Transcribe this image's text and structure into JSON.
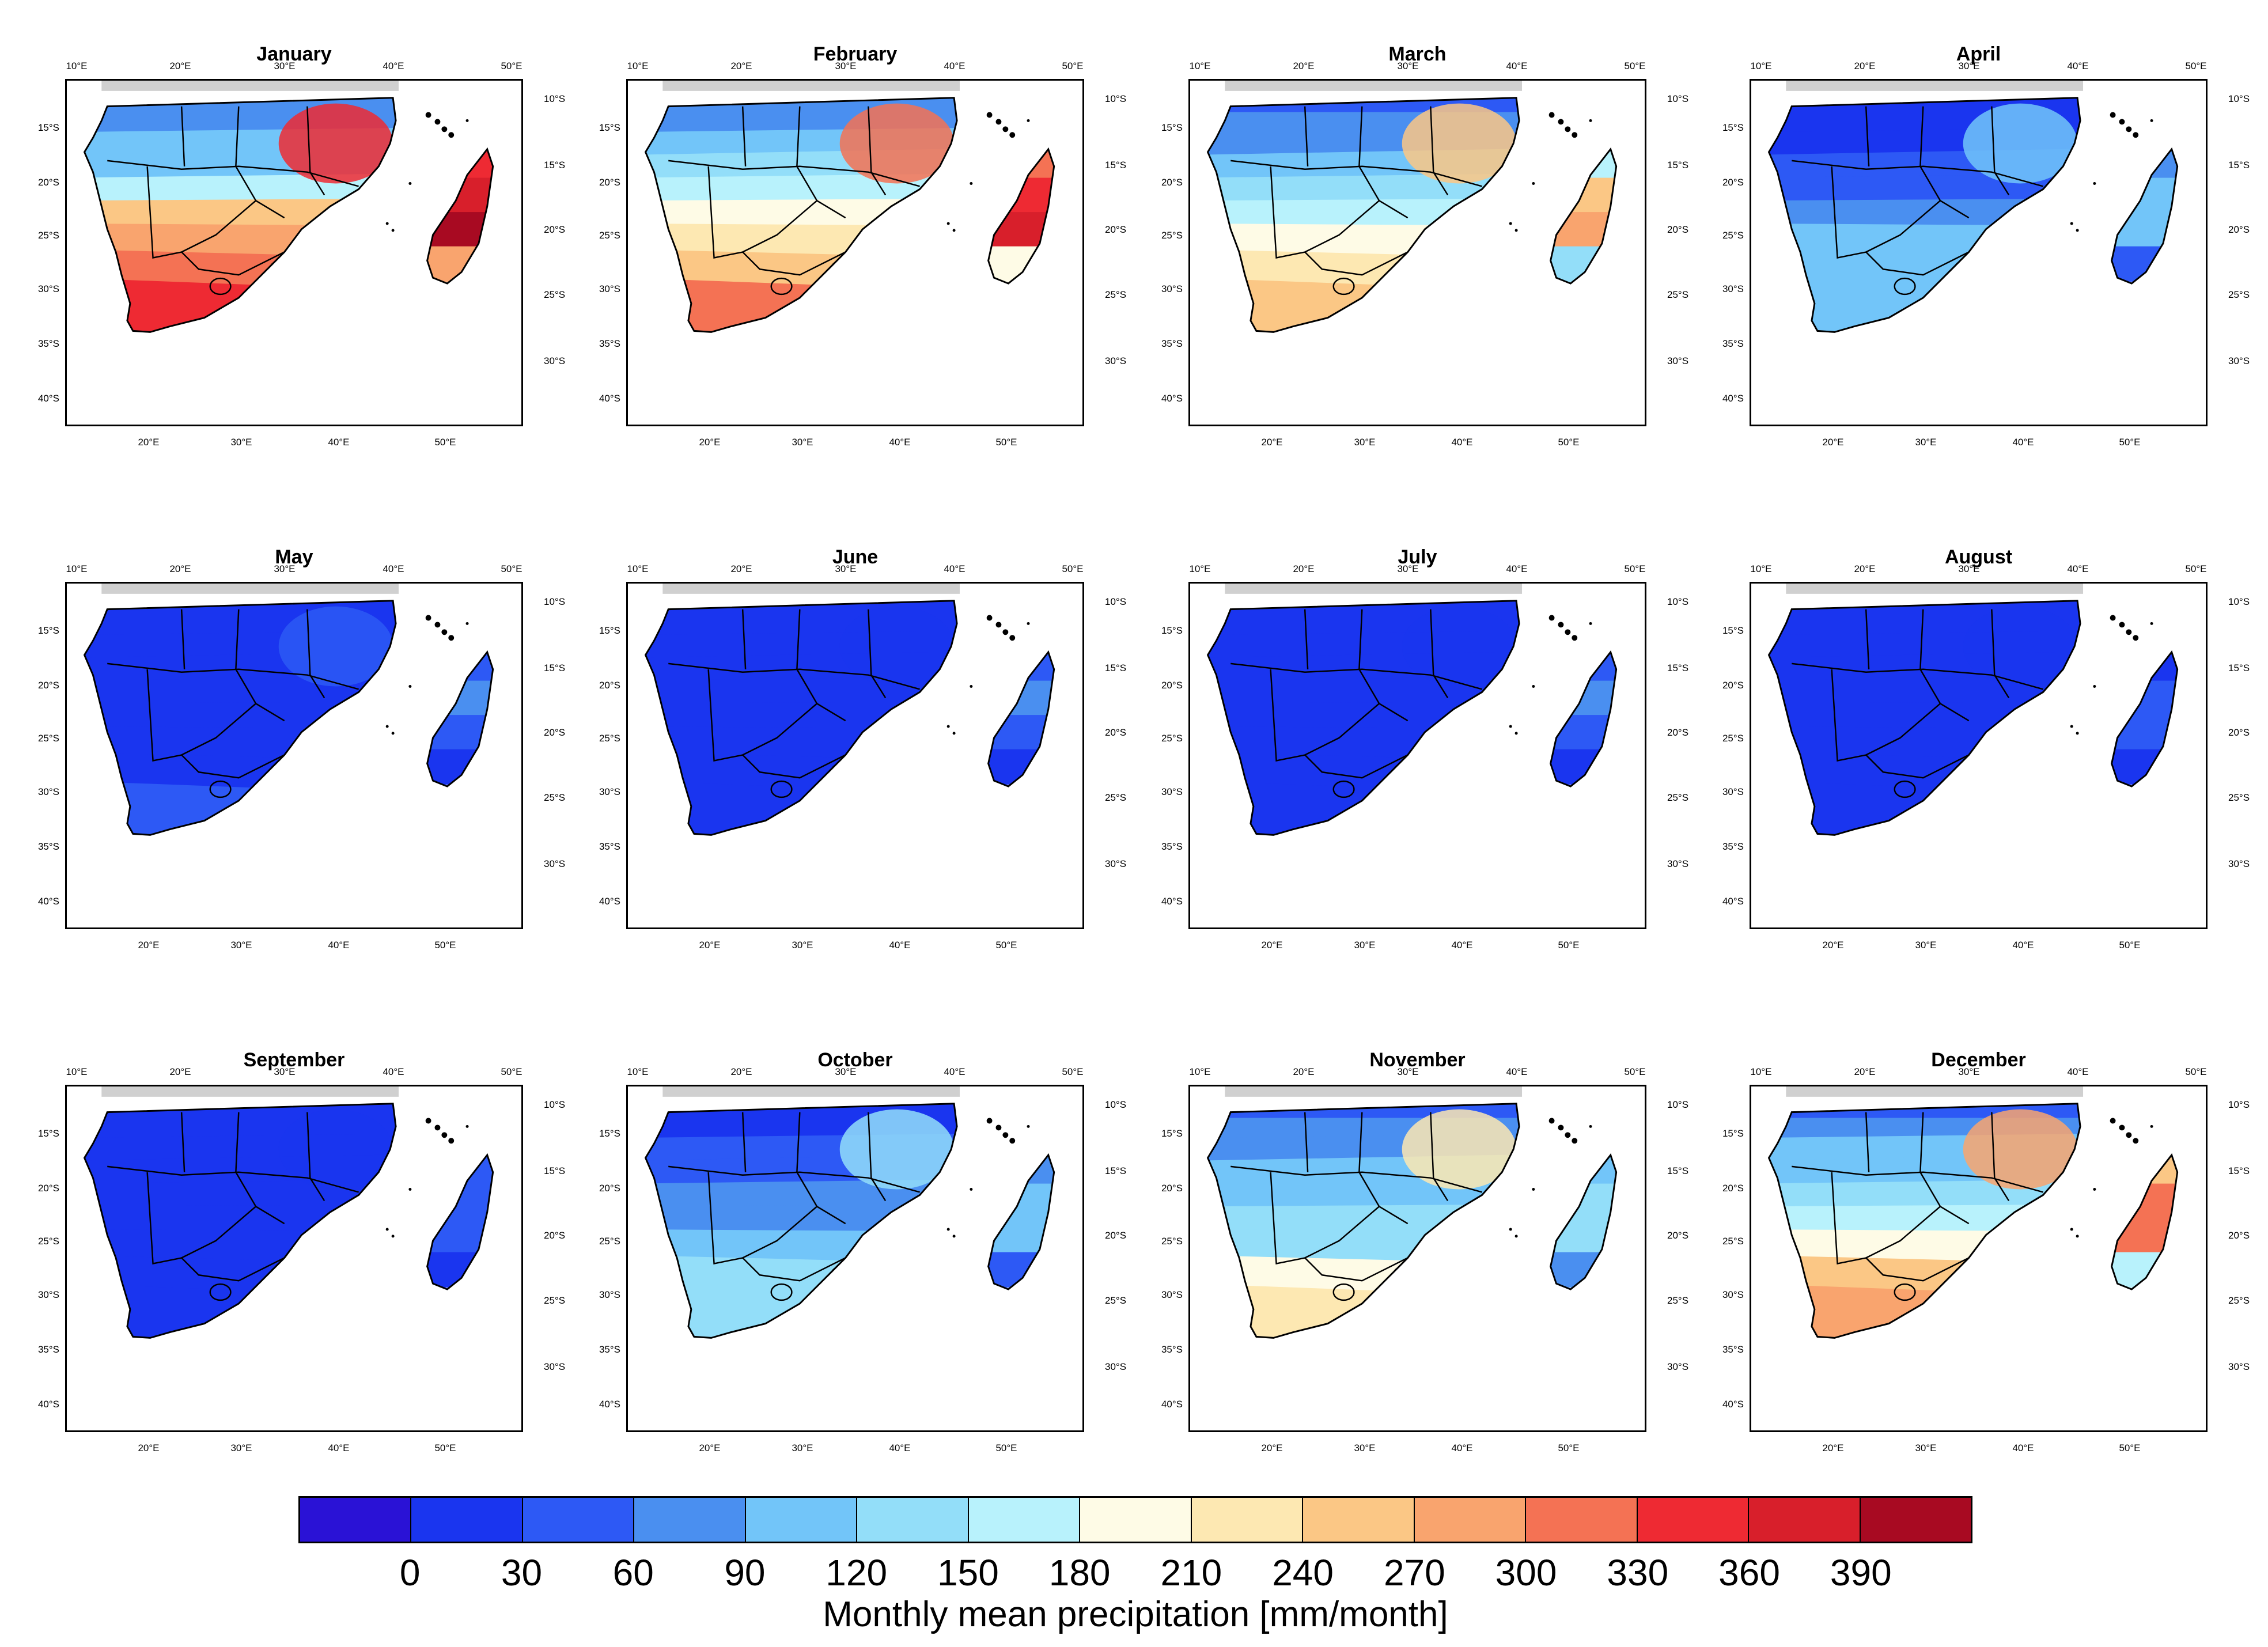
{
  "colors": [
    "#2a12d6",
    "#1a35ef",
    "#2d59f5",
    "#4a8ff0",
    "#72c5f9",
    "#93def9",
    "#b8f2fc",
    "#fefbe6",
    "#fde8b2",
    "#fbc785",
    "#f9a46e",
    "#f47254",
    "#ee2a33",
    "#d81f2b",
    "#a80a22"
  ],
  "panels": [
    {
      "title": "January",
      "zone": [
        3,
        3,
        4,
        4,
        6,
        9,
        10,
        11,
        12
      ],
      "mad": [
        12,
        13,
        14,
        10
      ]
    },
    {
      "title": "February",
      "zone": [
        3,
        3,
        4,
        5,
        6,
        7,
        8,
        9,
        11
      ],
      "mad": [
        11,
        12,
        13,
        7
      ]
    },
    {
      "title": "March",
      "zone": [
        2,
        3,
        3,
        4,
        5,
        6,
        7,
        8,
        9
      ],
      "mad": [
        6,
        9,
        10,
        5
      ]
    },
    {
      "title": "April",
      "zone": [
        1,
        1,
        1,
        2,
        2,
        3,
        4,
        4,
        4
      ],
      "mad": [
        3,
        4,
        4,
        2
      ]
    },
    {
      "title": "May",
      "zone": [
        1,
        1,
        1,
        1,
        1,
        1,
        1,
        1,
        2
      ],
      "mad": [
        2,
        3,
        2,
        1
      ]
    },
    {
      "title": "June",
      "zone": [
        1,
        1,
        1,
        1,
        1,
        1,
        1,
        1,
        1
      ],
      "mad": [
        2,
        3,
        2,
        1
      ]
    },
    {
      "title": "July",
      "zone": [
        1,
        1,
        1,
        1,
        1,
        1,
        1,
        1,
        1
      ],
      "mad": [
        2,
        3,
        2,
        1
      ]
    },
    {
      "title": "August",
      "zone": [
        1,
        1,
        1,
        1,
        1,
        1,
        1,
        1,
        1
      ],
      "mad": [
        1,
        2,
        2,
        1
      ]
    },
    {
      "title": "September",
      "zone": [
        1,
        1,
        1,
        1,
        1,
        1,
        1,
        1,
        1
      ],
      "mad": [
        2,
        2,
        2,
        1
      ]
    },
    {
      "title": "October",
      "zone": [
        1,
        1,
        2,
        2,
        3,
        3,
        4,
        5,
        5
      ],
      "mad": [
        3,
        4,
        4,
        2
      ]
    },
    {
      "title": "November",
      "zone": [
        2,
        3,
        3,
        4,
        4,
        5,
        5,
        7,
        8
      ],
      "mad": [
        4,
        5,
        5,
        3
      ]
    },
    {
      "title": "December",
      "zone": [
        2,
        3,
        4,
        4,
        5,
        6,
        7,
        9,
        10
      ],
      "mad": [
        9,
        11,
        11,
        6
      ]
    }
  ],
  "axes": {
    "top": [
      "10°E",
      "20°E",
      "30°E",
      "40°E",
      "50°E"
    ],
    "bottom": [
      "20°E",
      "30°E",
      "40°E",
      "50°E"
    ],
    "left": [
      "15°S",
      "20°S",
      "25°S",
      "30°S",
      "35°S",
      "40°S"
    ],
    "right": [
      "10°S",
      "15°S",
      "20°S",
      "25°S",
      "30°S"
    ]
  },
  "legend": {
    "labels": [
      "0",
      "30",
      "60",
      "90",
      "120",
      "150",
      "180",
      "210",
      "240",
      "270",
      "300",
      "330",
      "360",
      "390"
    ],
    "title": "Monthly mean precipitation [mm/month]"
  }
}
